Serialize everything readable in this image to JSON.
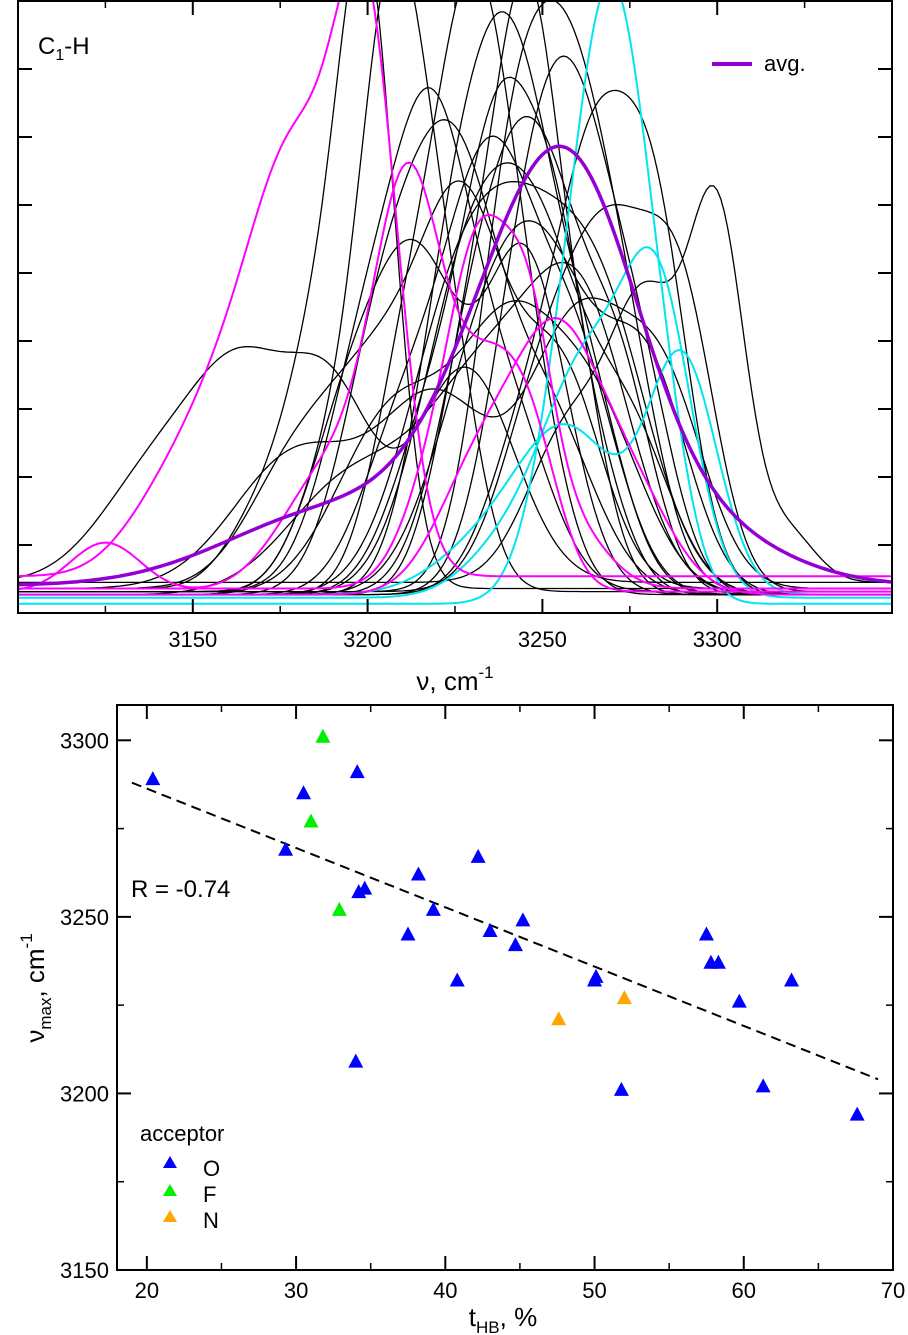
{
  "chart_data": [
    {
      "type": "line",
      "annotation_main": "C",
      "annotation_sub": "1",
      "annotation_suffix": "-H",
      "xlabel_main": "ν, cm",
      "xlabel_sup": "-1",
      "xlim": [
        3100,
        3350
      ],
      "xticks": [
        3150,
        3200,
        3250,
        3300
      ],
      "ylim": [
        0,
        1
      ],
      "y_tick_labels_shown": false,
      "legend": {
        "placement": "top-right",
        "entries": [
          {
            "name": "avg.",
            "color": "#9400d3"
          }
        ]
      },
      "colors": {
        "individual": "#000000",
        "magenta": "#ff00ff",
        "cyan": "#00e5ee",
        "avg": "#9400d3"
      },
      "series": [
        {
          "color": "#9400d3",
          "role": "avg",
          "peaks": [
            [
              3245,
              0.44,
              22
            ],
            [
              3263,
              0.3,
              18
            ],
            [
              3190,
              0.12,
              30
            ],
            [
              3290,
              0.1,
              25
            ]
          ],
          "base": 0.045
        },
        {
          "color": "#ff00ff",
          "peaks": [
            [
              3200,
              0.82,
              9
            ],
            [
              3181,
              0.55,
              12
            ],
            [
              3162,
              0.3,
              14
            ],
            [
              3140,
              0.08,
              12
            ]
          ],
          "base": 0.06
        },
        {
          "color": "#ff00ff",
          "peaks": [
            [
              3212,
              0.62,
              10
            ],
            [
              3235,
              0.32,
              10
            ],
            [
              3248,
              0.16,
              8
            ],
            [
              3190,
              0.2,
              14
            ],
            [
              3125,
              0.08,
              10
            ]
          ],
          "base": 0.035
        },
        {
          "color": "#ff00ff",
          "peaks": [
            [
              3233,
              0.42,
              8
            ],
            [
              3246,
              0.35,
              7
            ],
            [
              3222,
              0.22,
              10
            ],
            [
              3258,
              0.1,
              10
            ]
          ],
          "base": 0.04
        },
        {
          "color": "#ff00ff",
          "peaks": [
            [
              3254,
              0.38,
              12
            ],
            [
              3232,
              0.2,
              12
            ],
            [
              3275,
              0.16,
              12
            ]
          ],
          "base": 0.03
        },
        {
          "color": "#00e5ee",
          "peaks": [
            [
              3271,
              0.85,
              10
            ],
            [
              3258,
              0.3,
              10
            ],
            [
              3285,
              0.15,
              8
            ]
          ],
          "base": 0.015
        },
        {
          "color": "#00e5ee",
          "peaks": [
            [
              3283,
              0.48,
              10
            ],
            [
              3262,
              0.35,
              12
            ],
            [
              3240,
              0.08,
              12
            ]
          ],
          "base": 0.025
        },
        {
          "color": "#00e5ee",
          "peaks": [
            [
              3290,
              0.38,
              10
            ],
            [
              3258,
              0.25,
              14
            ],
            [
              3235,
              0.08,
              15
            ]
          ],
          "base": 0.03
        },
        {
          "color": "#000000",
          "peaks": [
            [
              3200,
              0.95,
              8
            ],
            [
              3186,
              0.35,
              9
            ],
            [
              3170,
              0.12,
              10
            ]
          ],
          "base": 0.04
        },
        {
          "color": "#000000",
          "peaks": [
            [
              3207,
              0.9,
              9
            ],
            [
              3222,
              0.4,
              9
            ],
            [
              3190,
              0.2,
              10
            ]
          ],
          "base": 0.035
        },
        {
          "color": "#000000",
          "peaks": [
            [
              3230,
              0.85,
              10
            ],
            [
              3212,
              0.38,
              10
            ],
            [
              3245,
              0.32,
              10
            ]
          ],
          "base": 0.03
        },
        {
          "color": "#000000",
          "peaks": [
            [
              3246,
              0.83,
              9
            ],
            [
              3230,
              0.4,
              10
            ],
            [
              3262,
              0.25,
              10
            ]
          ],
          "base": 0.03
        },
        {
          "color": "#000000",
          "peaks": [
            [
              3257,
              0.78,
              12
            ],
            [
              3240,
              0.48,
              10
            ],
            [
              3275,
              0.25,
              10
            ]
          ],
          "base": 0.035
        },
        {
          "color": "#000000",
          "peaks": [
            [
              3300,
              0.58,
              8
            ],
            [
              3280,
              0.42,
              10
            ],
            [
              3258,
              0.25,
              12
            ],
            [
              3320,
              0.08,
              8
            ]
          ],
          "base": 0.05
        },
        {
          "color": "#000000",
          "peaks": [
            [
              3242,
              0.72,
              11
            ],
            [
              3225,
              0.5,
              11
            ],
            [
              3262,
              0.32,
              11
            ]
          ],
          "base": 0.03
        },
        {
          "color": "#000000",
          "peaks": [
            [
              3219,
              0.65,
              11
            ],
            [
              3200,
              0.38,
              12
            ],
            [
              3240,
              0.28,
              12
            ]
          ],
          "base": 0.035
        },
        {
          "color": "#000000",
          "peaks": [
            [
              3235,
              0.68,
              13
            ],
            [
              3260,
              0.35,
              12
            ],
            [
              3210,
              0.25,
              12
            ]
          ],
          "base": 0.03
        },
        {
          "color": "#000000",
          "peaks": [
            [
              3265,
              0.55,
              10
            ],
            [
              3282,
              0.58,
              10
            ],
            [
              3248,
              0.3,
              12
            ]
          ],
          "base": 0.03
        },
        {
          "color": "#000000",
          "peaks": [
            [
              3225,
              0.6,
              12
            ],
            [
              3205,
              0.42,
              12
            ],
            [
              3250,
              0.3,
              14
            ]
          ],
          "base": 0.03
        },
        {
          "color": "#000000",
          "peaks": [
            [
              3250,
              0.6,
              12
            ],
            [
              3232,
              0.4,
              12
            ],
            [
              3272,
              0.32,
              10
            ]
          ],
          "base": 0.03
        },
        {
          "color": "#000000",
          "peaks": [
            [
              3165,
              0.3,
              14
            ],
            [
              3190,
              0.28,
              12
            ],
            [
              3228,
              0.35,
              14
            ],
            [
              3140,
              0.18,
              16
            ]
          ],
          "base": 0.05
        },
        {
          "color": "#000000",
          "peaks": [
            [
              3205,
              0.32,
              14
            ],
            [
              3228,
              0.55,
              12
            ],
            [
              3255,
              0.35,
              12
            ],
            [
              3180,
              0.2,
              14
            ]
          ],
          "base": 0.04
        },
        {
          "color": "#000000",
          "peaks": [
            [
              3215,
              0.48,
              12
            ],
            [
              3245,
              0.55,
              12
            ],
            [
              3195,
              0.28,
              12
            ]
          ],
          "base": 0.03
        },
        {
          "color": "#000000",
          "peaks": [
            [
              3238,
              0.62,
              10
            ],
            [
              3255,
              0.5,
              10
            ],
            [
              3220,
              0.3,
              12
            ]
          ],
          "base": 0.03
        },
        {
          "color": "#000000",
          "peaks": [
            [
              3260,
              0.62,
              11
            ],
            [
              3245,
              0.45,
              11
            ],
            [
              3278,
              0.3,
              10
            ]
          ],
          "base": 0.03
        },
        {
          "color": "#000000",
          "peaks": [
            [
              3229,
              0.5,
              14
            ],
            [
              3250,
              0.45,
              13
            ],
            [
              3275,
              0.25,
              12
            ]
          ],
          "base": 0.03
        },
        {
          "color": "#000000",
          "peaks": [
            [
              3243,
              0.5,
              16
            ],
            [
              3268,
              0.38,
              14
            ],
            [
              3222,
              0.3,
              14
            ]
          ],
          "base": 0.03
        },
        {
          "color": "#000000",
          "peaks": [
            [
              3180,
              0.22,
              18
            ],
            [
              3220,
              0.3,
              16
            ],
            [
              3260,
              0.42,
              14
            ],
            [
              3285,
              0.3,
              12
            ]
          ],
          "base": 0.04
        },
        {
          "color": "#000000",
          "peaks": [
            [
              3252,
              0.45,
              14
            ],
            [
              3232,
              0.32,
              14
            ],
            [
              3280,
              0.35,
              12
            ]
          ],
          "base": 0.03
        },
        {
          "color": "#000000",
          "peaks": [
            [
              3270,
              0.5,
              12
            ],
            [
              3290,
              0.42,
              10
            ],
            [
              3250,
              0.3,
              12
            ]
          ],
          "base": 0.035
        },
        {
          "color": "#000000",
          "peaks": [
            [
              3208,
              0.3,
              16
            ],
            [
              3240,
              0.38,
              14
            ],
            [
              3265,
              0.28,
              14
            ]
          ],
          "base": 0.03
        },
        {
          "color": "#000000",
          "peaks": [
            [
              3235,
              0.35,
              18
            ],
            [
              3262,
              0.4,
              14
            ],
            [
              3195,
              0.18,
              18
            ]
          ],
          "base": 0.03
        }
      ]
    },
    {
      "type": "scatter",
      "xlabel_main": "t",
      "xlabel_sub": "HB",
      "xlabel_suffix": ", %",
      "ylabel_main": "ν",
      "ylabel_sub": "max",
      "ylabel_suffix": ", cm",
      "ylabel_sup": "-1",
      "xlim": [
        18,
        70
      ],
      "ylim": [
        3150,
        3310
      ],
      "xticks": [
        20,
        30,
        40,
        50,
        60,
        70
      ],
      "yticks": [
        3150,
        3200,
        3250,
        3300
      ],
      "annotation": "R = -0.74",
      "fit_line": {
        "x": [
          19,
          69
        ],
        "y": [
          3288,
          3204
        ],
        "style": "dashed",
        "color": "#000000"
      },
      "legend": {
        "title": "acceptor",
        "placement": "bottom-left",
        "entries": [
          {
            "name": "O",
            "color": "#0000ff"
          },
          {
            "name": "F",
            "color": "#00ee00"
          },
          {
            "name": "N",
            "color": "#ffa500"
          }
        ]
      },
      "series": [
        {
          "name": "O",
          "color": "#0000ff",
          "x": [
            20.4,
            29.3,
            30.5,
            34.1,
            34.2,
            34.6,
            34.0,
            38.2,
            37.5,
            39.2,
            40.8,
            42.2,
            43.0,
            44.7,
            45.2,
            50.0,
            50.1,
            51.8,
            57.5,
            57.8,
            58.3,
            59.7,
            61.3,
            63.2,
            67.6
          ],
          "y": [
            3289,
            3269,
            3285,
            3291,
            3257,
            3258,
            3209,
            3262,
            3245,
            3252,
            3232,
            3267,
            3246,
            3242,
            3249,
            3232,
            3233,
            3201,
            3245,
            3237,
            3237,
            3226,
            3202,
            3232,
            3194
          ]
        },
        {
          "name": "F",
          "color": "#00ee00",
          "x": [
            31.8,
            31.0,
            32.9
          ],
          "y": [
            3301,
            3277,
            3252
          ]
        },
        {
          "name": "N",
          "color": "#ffa500",
          "x": [
            47.6,
            52.0
          ],
          "y": [
            3221,
            3227
          ]
        }
      ]
    }
  ]
}
